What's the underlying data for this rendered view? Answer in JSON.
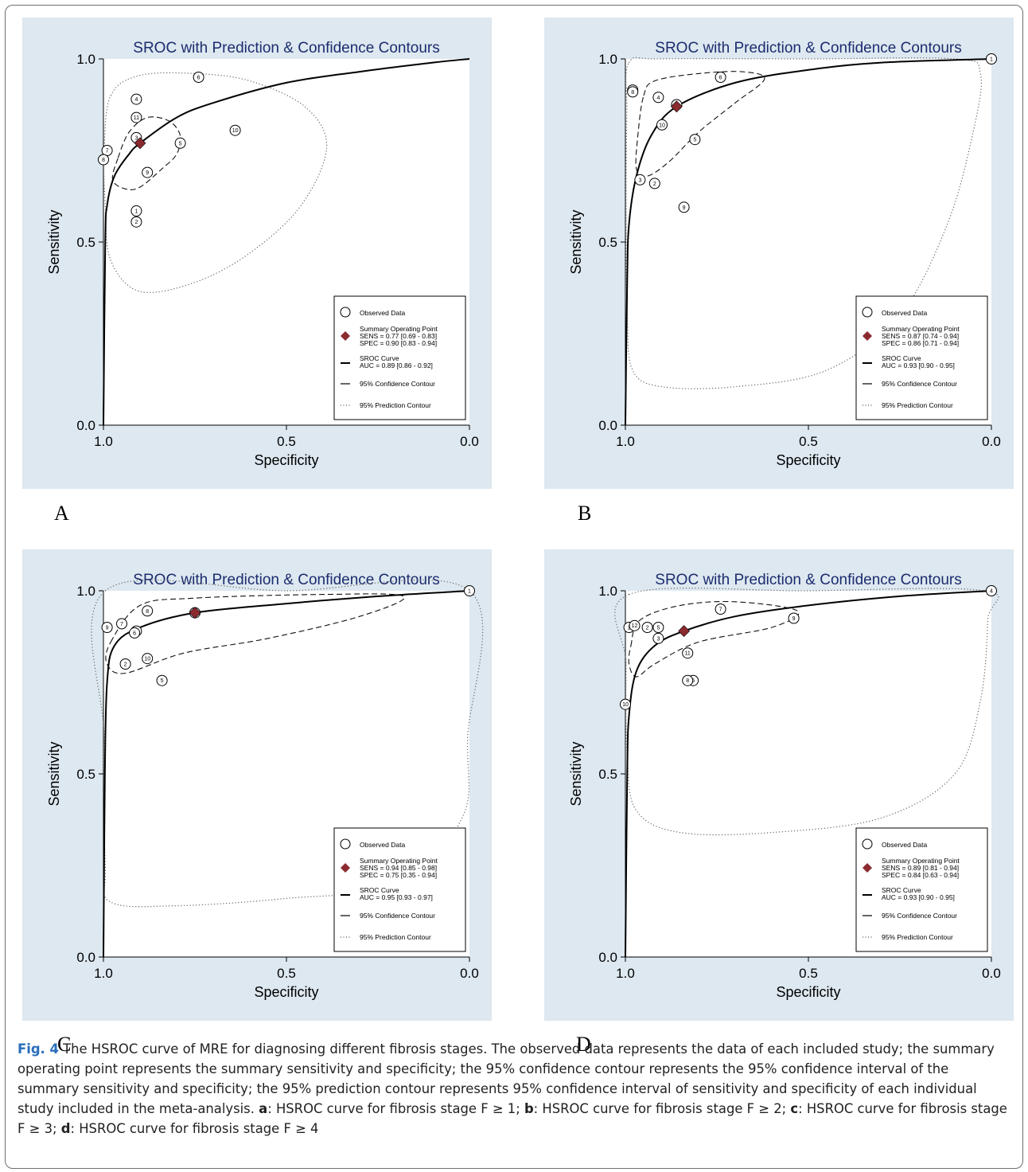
{
  "figure": {
    "caption_label": "Fig. 4",
    "caption_text": " The HSROC curve of MRE for diagnosing different fibrosis stages. The observed data represents the data of each included study; the summary operating point represents the summary sensitivity and specificity; the 95% confidence contour represents the 95% confidence interval of the summary sensitivity and specificity; the 95% prediction contour represents 95% confidence interval of sensitivity and specificity of each individual study included in the meta-analysis. ",
    "caption_parts": [
      {
        "key": "a",
        "text": ": HSROC curve for fibrosis stage F ≥ 1; "
      },
      {
        "key": "b",
        "text": ": HSROC curve for fibrosis stage F ≥ 2; "
      },
      {
        "key": "c",
        "text": ": HSROC curve for fibrosis stage F ≥ 3; "
      },
      {
        "key": "d",
        "text": ": HSROC curve for fibrosis stage F ≥ 4"
      }
    ],
    "panel_letters": [
      "A",
      "B",
      "C",
      "D"
    ]
  },
  "colors": {
    "panel_bg": "#dde8f0",
    "plot_bg": "#ffffff",
    "title": "#1c2c6e",
    "summary_point": "#8b2a2f"
  },
  "chart_data": [
    {
      "type": "scatter",
      "title": "SROC with Prediction & Confidence Contours",
      "xlabel": "Specificity",
      "ylabel": "Sensitivity",
      "x_reversed": true,
      "xlim": [
        1.0,
        0.0
      ],
      "ylim": [
        0.0,
        1.0
      ],
      "xticks": [
        "1.0",
        "0.5",
        "0.0"
      ],
      "yticks": [
        "0.0",
        "0.5",
        "1.0"
      ],
      "legend_position": "bottom-right",
      "legend": {
        "observed": "Observed Data",
        "summary_title": "Summary Operating Point",
        "sens": "SENS = 0.77 [0.69 - 0.83]",
        "spec": "SPEC = 0.90 [0.83 - 0.94]",
        "curve_title": "SROC Curve",
        "auc": "AUC = 0.89 [0.86 - 0.92]",
        "confidence": "95% Confidence Contour",
        "prediction": "95% Prediction Contour"
      },
      "sroc_curve": [
        [
          1.0,
          0.0
        ],
        [
          0.995,
          0.5
        ],
        [
          0.99,
          0.6
        ],
        [
          0.97,
          0.68
        ],
        [
          0.93,
          0.74
        ],
        [
          0.9,
          0.77
        ],
        [
          0.8,
          0.84
        ],
        [
          0.7,
          0.88
        ],
        [
          0.5,
          0.935
        ],
        [
          0.3,
          0.965
        ],
        [
          0.1,
          0.99
        ],
        [
          0.0,
          1.0
        ]
      ],
      "summary_point": {
        "spec": 0.9,
        "sens": 0.77
      },
      "studies": [
        {
          "label": "1",
          "spec": 0.91,
          "sens": 0.585
        },
        {
          "label": "2",
          "spec": 0.91,
          "sens": 0.555
        },
        {
          "label": "3",
          "spec": 0.91,
          "sens": 0.785
        },
        {
          "label": "4",
          "spec": 0.91,
          "sens": 0.89
        },
        {
          "label": "5",
          "spec": 0.79,
          "sens": 0.77
        },
        {
          "label": "6",
          "spec": 0.74,
          "sens": 0.95
        },
        {
          "label": "7",
          "spec": 0.99,
          "sens": 0.75
        },
        {
          "label": "8",
          "spec": 1.0,
          "sens": 0.725
        },
        {
          "label": "9",
          "spec": 0.88,
          "sens": 0.69
        },
        {
          "label": "10",
          "spec": 0.64,
          "sens": 0.805
        },
        {
          "label": "11",
          "spec": 0.91,
          "sens": 0.84
        }
      ],
      "confidence_contour": [
        [
          0.96,
          0.73
        ],
        [
          0.93,
          0.8
        ],
        [
          0.88,
          0.84
        ],
        [
          0.82,
          0.83
        ],
        [
          0.79,
          0.79
        ],
        [
          0.8,
          0.74
        ],
        [
          0.84,
          0.7
        ],
        [
          0.9,
          0.65
        ],
        [
          0.94,
          0.645
        ],
        [
          0.975,
          0.67
        ]
      ],
      "prediction_contour": [
        [
          0.98,
          0.9
        ],
        [
          0.9,
          0.955
        ],
        [
          0.75,
          0.96
        ],
        [
          0.6,
          0.94
        ],
        [
          0.45,
          0.87
        ],
        [
          0.39,
          0.76
        ],
        [
          0.46,
          0.6
        ],
        [
          0.6,
          0.47
        ],
        [
          0.75,
          0.39
        ],
        [
          0.9,
          0.365
        ],
        [
          0.98,
          0.45
        ],
        [
          0.995,
          0.6
        ],
        [
          0.998,
          0.75
        ]
      ]
    },
    {
      "type": "scatter",
      "title": "SROC with Prediction & Confidence Contours",
      "xlabel": "Specificity",
      "ylabel": "Sensitivity",
      "x_reversed": true,
      "xlim": [
        1.0,
        0.0
      ],
      "ylim": [
        0.0,
        1.0
      ],
      "xticks": [
        "1.0",
        "0.5",
        "0.0"
      ],
      "yticks": [
        "0.0",
        "0.5",
        "1.0"
      ],
      "legend_position": "bottom-right",
      "legend": {
        "observed": "Observed Data",
        "summary_title": "Summary Operating Point",
        "sens": "SENS = 0.87 [0.74 - 0.94]",
        "spec": "SPEC = 0.86 [0.71 - 0.94]",
        "curve_title": "SROC Curve",
        "auc": "AUC = 0.93 [0.90 - 0.95]",
        "confidence": "95% Confidence Contour",
        "prediction": "95% Prediction Contour"
      },
      "sroc_curve": [
        [
          1.0,
          0.0
        ],
        [
          0.995,
          0.4
        ],
        [
          0.99,
          0.55
        ],
        [
          0.97,
          0.68
        ],
        [
          0.93,
          0.79
        ],
        [
          0.86,
          0.87
        ],
        [
          0.7,
          0.935
        ],
        [
          0.5,
          0.97
        ],
        [
          0.3,
          0.99
        ],
        [
          0.0,
          1.0
        ]
      ],
      "summary_point": {
        "spec": 0.86,
        "sens": 0.87
      },
      "studies": [
        {
          "label": "1",
          "spec": 0.0,
          "sens": 1.0
        },
        {
          "label": "2",
          "spec": 0.92,
          "sens": 0.66
        },
        {
          "label": "3",
          "spec": 0.96,
          "sens": 0.67
        },
        {
          "label": "4",
          "spec": 0.91,
          "sens": 0.895
        },
        {
          "label": "5",
          "spec": 0.81,
          "sens": 0.78
        },
        {
          "label": "6",
          "spec": 0.74,
          "sens": 0.95
        },
        {
          "label": "7",
          "spec": 0.98,
          "sens": 0.915
        },
        {
          "label": "8",
          "spec": 0.98,
          "sens": 0.91
        },
        {
          "label": "9",
          "spec": 0.84,
          "sens": 0.595
        },
        {
          "label": "10",
          "spec": 0.9,
          "sens": 0.82
        },
        {
          "label": "11",
          "spec": 0.86,
          "sens": 0.875
        }
      ],
      "confidence_contour": [
        [
          0.95,
          0.9
        ],
        [
          0.92,
          0.94
        ],
        [
          0.8,
          0.96
        ],
        [
          0.68,
          0.965
        ],
        [
          0.62,
          0.945
        ],
        [
          0.7,
          0.88
        ],
        [
          0.8,
          0.8
        ],
        [
          0.88,
          0.72
        ],
        [
          0.94,
          0.68
        ],
        [
          0.97,
          0.7
        ],
        [
          0.965,
          0.8
        ]
      ],
      "prediction_contour": [
        [
          0.99,
          0.99
        ],
        [
          0.9,
          1.0
        ],
        [
          0.5,
          1.0
        ],
        [
          0.1,
          1.0
        ],
        [
          0.03,
          0.96
        ],
        [
          0.05,
          0.8
        ],
        [
          0.12,
          0.55
        ],
        [
          0.25,
          0.3
        ],
        [
          0.45,
          0.15
        ],
        [
          0.7,
          0.105
        ],
        [
          0.9,
          0.105
        ],
        [
          0.98,
          0.15
        ],
        [
          0.995,
          0.3
        ],
        [
          0.998,
          0.6
        ],
        [
          0.996,
          0.85
        ]
      ]
    },
    {
      "type": "scatter",
      "title": "SROC with Prediction & Confidence Contours",
      "xlabel": "Specificity",
      "ylabel": "Sensitivity",
      "x_reversed": true,
      "xlim": [
        1.0,
        0.0
      ],
      "ylim": [
        0.0,
        1.0
      ],
      "xticks": [
        "1.0",
        "0.5",
        "0.0"
      ],
      "yticks": [
        "0.0",
        "0.5",
        "1.0"
      ],
      "legend_position": "bottom-right",
      "legend": {
        "observed": "Observed Data",
        "summary_title": "Summary Operating Point",
        "sens": "SENS = 0.94 [0.85 - 0.98]",
        "spec": "SPEC = 0.75 [0.35 - 0.94]",
        "curve_title": "SROC Curve",
        "auc": "AUC = 0.95 [0.93 - 0.97]",
        "confidence": "95% Confidence Contour",
        "prediction": "95% Prediction Contour"
      },
      "sroc_curve": [
        [
          1.0,
          0.0
        ],
        [
          0.996,
          0.5
        ],
        [
          0.99,
          0.75
        ],
        [
          0.97,
          0.85
        ],
        [
          0.9,
          0.9
        ],
        [
          0.75,
          0.94
        ],
        [
          0.5,
          0.965
        ],
        [
          0.25,
          0.985
        ],
        [
          0.0,
          1.0
        ]
      ],
      "summary_point": {
        "spec": 0.75,
        "sens": 0.94
      },
      "studies": [
        {
          "label": "1",
          "spec": 0.0,
          "sens": 1.0
        },
        {
          "label": "2",
          "spec": 0.94,
          "sens": 0.8
        },
        {
          "label": "3",
          "spec": 0.91,
          "sens": 0.89
        },
        {
          "label": "4",
          "spec": 0.75,
          "sens": 0.94
        },
        {
          "label": "5",
          "spec": 0.84,
          "sens": 0.755
        },
        {
          "label": "6",
          "spec": 0.915,
          "sens": 0.885
        },
        {
          "label": "7",
          "spec": 0.95,
          "sens": 0.91
        },
        {
          "label": "8",
          "spec": 0.88,
          "sens": 0.945
        },
        {
          "label": "9",
          "spec": 0.99,
          "sens": 0.9
        },
        {
          "label": "10",
          "spec": 0.88,
          "sens": 0.815
        }
      ],
      "confidence_contour": [
        [
          0.98,
          0.86
        ],
        [
          0.9,
          0.96
        ],
        [
          0.75,
          0.98
        ],
        [
          0.4,
          0.99
        ],
        [
          0.18,
          0.985
        ],
        [
          0.3,
          0.93
        ],
        [
          0.55,
          0.87
        ],
        [
          0.78,
          0.83
        ],
        [
          0.94,
          0.775
        ],
        [
          0.99,
          0.8
        ]
      ],
      "prediction_contour": [
        [
          0.995,
          1.0
        ],
        [
          0.5,
          1.0
        ],
        [
          0.0,
          1.0
        ],
        [
          0.005,
          0.6
        ],
        [
          0.02,
          0.38
        ],
        [
          0.2,
          0.2
        ],
        [
          0.5,
          0.16
        ],
        [
          0.8,
          0.14
        ],
        [
          0.98,
          0.15
        ],
        [
          0.995,
          0.25
        ],
        [
          0.998,
          0.6
        ]
      ]
    },
    {
      "type": "scatter",
      "title": "SROC with Prediction & Confidence Contours",
      "xlabel": "Specificity",
      "ylabel": "Sensitivity",
      "x_reversed": true,
      "xlim": [
        1.0,
        0.0
      ],
      "ylim": [
        0.0,
        1.0
      ],
      "xticks": [
        "1.0",
        "0.5",
        "0.0"
      ],
      "yticks": [
        "0.0",
        "0.5",
        "1.0"
      ],
      "legend_position": "bottom-right",
      "legend": {
        "observed": "Observed Data",
        "summary_title": "Summary Operating Point",
        "sens": "SENS = 0.89 [0.81 - 0.94]",
        "spec": "SPEC = 0.84 [0.63 - 0.94]",
        "curve_title": "SROC Curve",
        "auc": "AUC = 0.93 [0.90 - 0.95]",
        "confidence": "95% Confidence Contour",
        "prediction": "95% Prediction Contour"
      },
      "sroc_curve": [
        [
          1.0,
          0.0
        ],
        [
          0.995,
          0.5
        ],
        [
          0.99,
          0.66
        ],
        [
          0.97,
          0.78
        ],
        [
          0.92,
          0.85
        ],
        [
          0.84,
          0.89
        ],
        [
          0.7,
          0.93
        ],
        [
          0.5,
          0.96
        ],
        [
          0.25,
          0.985
        ],
        [
          0.0,
          1.0
        ]
      ],
      "summary_point": {
        "spec": 0.84,
        "sens": 0.89
      },
      "studies": [
        {
          "label": "1",
          "spec": 0.99,
          "sens": 0.9
        },
        {
          "label": "2",
          "spec": 0.94,
          "sens": 0.9
        },
        {
          "label": "3",
          "spec": 0.91,
          "sens": 0.87
        },
        {
          "label": "4",
          "spec": 0.0,
          "sens": 1.0
        },
        {
          "label": "5",
          "spec": 0.91,
          "sens": 0.9
        },
        {
          "label": "6",
          "spec": 0.815,
          "sens": 0.755
        },
        {
          "label": "7",
          "spec": 0.74,
          "sens": 0.95
        },
        {
          "label": "8",
          "spec": 0.83,
          "sens": 0.755
        },
        {
          "label": "9",
          "spec": 0.54,
          "sens": 0.925
        },
        {
          "label": "10",
          "spec": 1.0,
          "sens": 0.69
        },
        {
          "label": "11",
          "spec": 0.83,
          "sens": 0.83
        },
        {
          "label": "12",
          "spec": 0.975,
          "sens": 0.905
        }
      ],
      "confidence_contour": [
        [
          0.985,
          0.85
        ],
        [
          0.96,
          0.92
        ],
        [
          0.85,
          0.96
        ],
        [
          0.7,
          0.97
        ],
        [
          0.53,
          0.945
        ],
        [
          0.6,
          0.9
        ],
        [
          0.8,
          0.86
        ],
        [
          0.92,
          0.8
        ],
        [
          0.97,
          0.765
        ],
        [
          0.99,
          0.8
        ]
      ],
      "prediction_contour": [
        [
          0.99,
          0.99
        ],
        [
          0.5,
          1.0
        ],
        [
          0.02,
          1.0
        ],
        [
          0.01,
          0.92
        ],
        [
          0.03,
          0.7
        ],
        [
          0.1,
          0.5
        ],
        [
          0.3,
          0.38
        ],
        [
          0.6,
          0.34
        ],
        [
          0.85,
          0.34
        ],
        [
          0.97,
          0.4
        ],
        [
          0.995,
          0.55
        ],
        [
          0.998,
          0.8
        ]
      ]
    }
  ]
}
